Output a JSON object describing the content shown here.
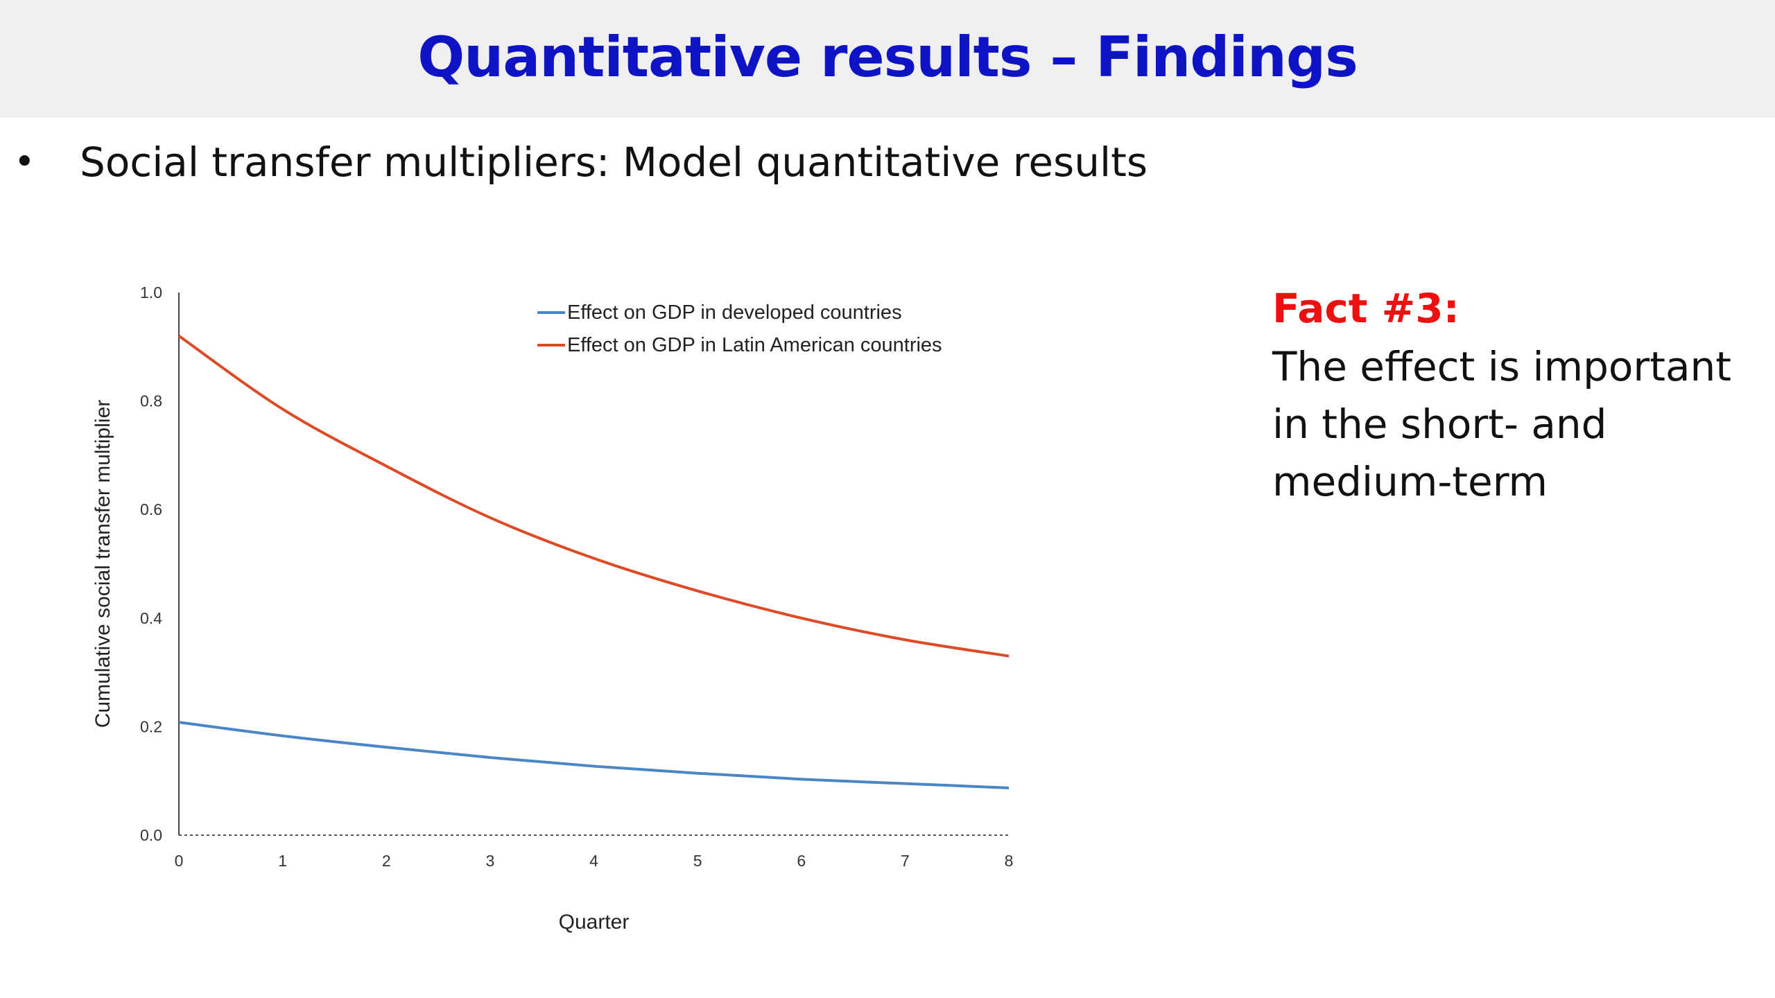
{
  "slide": {
    "title": "Quantitative results – Findings",
    "title_color": "#0f13c6",
    "bullet_symbol": "•",
    "bullet_text": "Social transfer multipliers: Model quantitative results"
  },
  "fact": {
    "heading": "Fact #3:",
    "heading_color": "#ee1010",
    "text": "The effect is important in the short- and medium-term"
  },
  "chart_data": {
    "type": "line",
    "title": "",
    "xlabel": "Quarter",
    "ylabel": "Cumulative social transfer multiplier",
    "x": [
      0,
      1,
      2,
      3,
      4,
      5,
      6,
      7,
      8
    ],
    "xlim": [
      0,
      8
    ],
    "ylim": [
      0,
      1.0
    ],
    "y_ticks": [
      "0.0",
      "0.2",
      "0.4",
      "0.6",
      "0.8",
      "1.0"
    ],
    "x_ticks": [
      "0",
      "1",
      "2",
      "3",
      "4",
      "5",
      "6",
      "7",
      "8"
    ],
    "grid": false,
    "legend_position": "top-right",
    "series": [
      {
        "name": "Effect on GDP in developed countries",
        "color": "#4a86c5",
        "values": [
          0.208,
          0.183,
          0.162,
          0.143,
          0.127,
          0.114,
          0.103,
          0.095,
          0.087
        ]
      },
      {
        "name": "Effect on GDP in Latin American countries",
        "color": "#dc4a26",
        "values": [
          0.92,
          0.785,
          0.68,
          0.585,
          0.51,
          0.45,
          0.4,
          0.36,
          0.33
        ]
      }
    ]
  }
}
